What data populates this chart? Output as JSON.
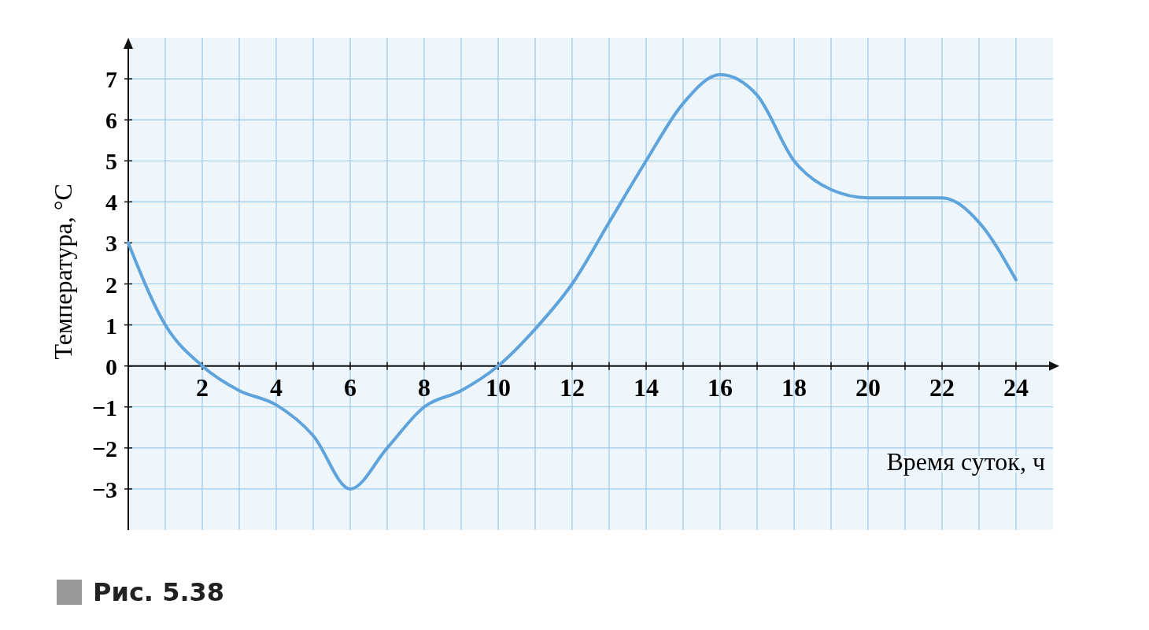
{
  "chart_data": {
    "type": "line",
    "xlabel": "Время суток, ч",
    "ylabel": "Температура, °C",
    "annotations": [
      "Рис. 5.38"
    ],
    "x": [
      0,
      1,
      2,
      3,
      4,
      5,
      6,
      7,
      8,
      9,
      10,
      11,
      12,
      13,
      14,
      15,
      16,
      17,
      18,
      19,
      20,
      21,
      22,
      23,
      24
    ],
    "series": [
      {
        "color": "#5ea3dc",
        "values": [
          3,
          1,
          0,
          -0.6,
          -0.95,
          -1.7,
          -3,
          -2,
          -1,
          -0.6,
          0,
          0.9,
          2,
          3.5,
          5,
          6.4,
          7.1,
          6.6,
          5,
          4.3,
          4.1,
          4.1,
          4.1,
          3.5,
          2.1
        ]
      }
    ],
    "xlim": [
      0,
      25
    ],
    "ylim": [
      -4,
      8
    ],
    "xticks": [
      {
        "value": 1,
        "label": null
      },
      2,
      {
        "value": 3,
        "label": null
      },
      4,
      {
        "value": 5,
        "label": null
      },
      6,
      {
        "value": 7,
        "label": null
      },
      8,
      {
        "value": 9,
        "label": null
      },
      10,
      {
        "value": 11,
        "label": null
      },
      12,
      {
        "value": 13,
        "label": null
      },
      14,
      {
        "value": 15,
        "label": null
      },
      16,
      {
        "value": 17,
        "label": null
      },
      18,
      {
        "value": 19,
        "label": null
      },
      20,
      {
        "value": 21,
        "label": null
      },
      22,
      {
        "value": 23,
        "label": null
      },
      24
    ],
    "yticks": [
      -3,
      -2,
      -1,
      0,
      1,
      2,
      3,
      4,
      5,
      6,
      7
    ],
    "grid": true,
    "marker": "none",
    "line_style": "solid"
  }
}
